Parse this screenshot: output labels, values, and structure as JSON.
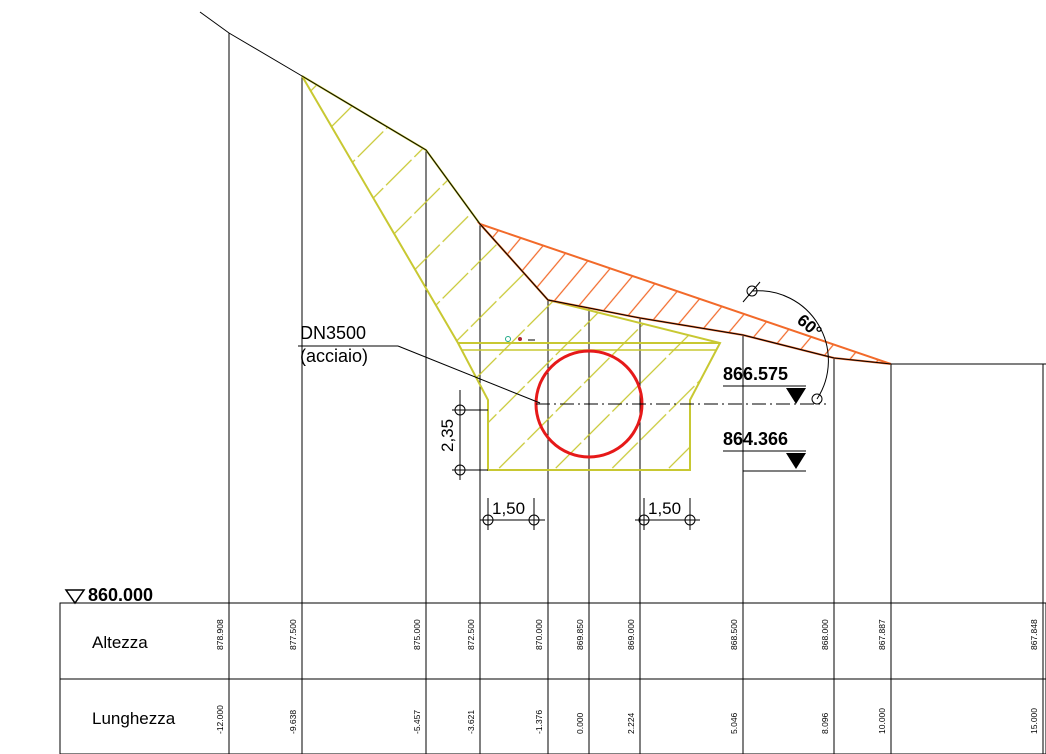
{
  "pipe": {
    "name": "DN3500",
    "material": "(acciaio)"
  },
  "levels": {
    "axis": "866.575",
    "bottom": "864.366",
    "reference": "860.000"
  },
  "angle_label": "60°",
  "dimensions": {
    "height": "2,35",
    "left_offset": "1,50",
    "right_offset": "1,50"
  },
  "table": {
    "row_labels": {
      "height": "Altezza",
      "length": "Lunghezza"
    },
    "height_values": [
      "878.908",
      "877.500",
      "875.000",
      "872.500",
      "870.000",
      "869.850",
      "869.000",
      "868.500",
      "868.000",
      "867.887",
      "867.848"
    ],
    "length_values": [
      "-12.000",
      "-9.638",
      "-5.457",
      "-3.621",
      "-1.376",
      "0.000",
      "2.224",
      "5.046",
      "8.096",
      "10.000",
      "15.000"
    ]
  },
  "colors": {
    "fill_yellow": "#c8c832",
    "cut_orange": "#f26a2a",
    "pipe_red": "#e61919",
    "line": "#000000"
  }
}
